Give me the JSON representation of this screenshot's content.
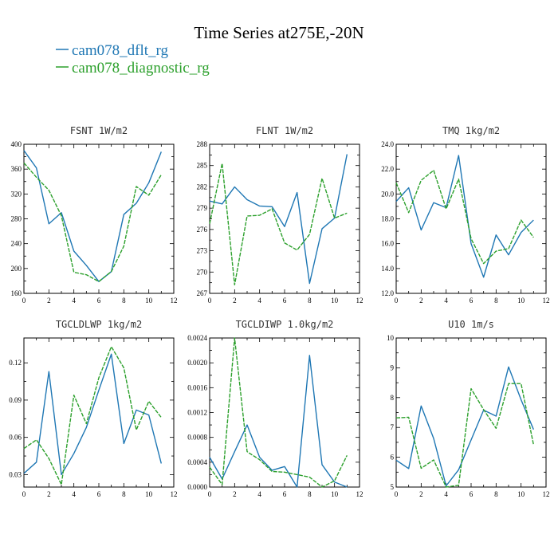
{
  "figure": {
    "title": "Time Series at275E,-20N",
    "legend": [
      {
        "label": "cam078_dflt_rg",
        "color": "#1f77b4"
      },
      {
        "label": "cam078_diagnostic_rg",
        "color": "#2ca02c"
      }
    ]
  },
  "chart_data": [
    {
      "type": "line",
      "title": "FSNT   1W/m2",
      "x": [
        0,
        1,
        2,
        3,
        4,
        5,
        6,
        7,
        8,
        9,
        10,
        11
      ],
      "xlim": [
        0,
        12
      ],
      "xticks": [
        "0",
        "2",
        "4",
        "6",
        "8",
        "10",
        "12"
      ],
      "ylim": [
        160,
        400
      ],
      "yticks": [
        "160",
        "200",
        "240",
        "280",
        "320",
        "360",
        "400"
      ],
      "series": [
        {
          "name": "cam078_dflt_rg",
          "color": "#1f77b4",
          "values": [
            390,
            362,
            272,
            290,
            228,
            205,
            179,
            195,
            287,
            305,
            338,
            388
          ]
        },
        {
          "name": "cam078_diagnostic_rg",
          "color": "#2ca02c",
          "dashed": true,
          "values": [
            370,
            347,
            326,
            285,
            194,
            190,
            179,
            195,
            236,
            332,
            318,
            351
          ]
        }
      ]
    },
    {
      "type": "line",
      "title": "FLNT   1W/m2",
      "x": [
        0,
        1,
        2,
        3,
        4,
        5,
        6,
        7,
        8,
        9,
        10,
        11
      ],
      "xlim": [
        0,
        12
      ],
      "xticks": [
        "0",
        "2",
        "4",
        "6",
        "8",
        "10",
        "12"
      ],
      "ylim": [
        267,
        288
      ],
      "yticks": [
        "267",
        "270",
        "273",
        "276",
        "279",
        "282",
        "285",
        "288"
      ],
      "series": [
        {
          "name": "cam078_dflt_rg",
          "color": "#1f77b4",
          "values": [
            280,
            279.6,
            282,
            280.2,
            279.3,
            279.2,
            276.4,
            281.2,
            268.4,
            276.1,
            277.6,
            286.6
          ]
        },
        {
          "name": "cam078_diagnostic_rg",
          "color": "#2ca02c",
          "dashed": true,
          "values": [
            276.8,
            285.3,
            268.2,
            277.9,
            278,
            278.9,
            274.1,
            273.1,
            275.3,
            283.2,
            277.6,
            278.3
          ]
        }
      ]
    },
    {
      "type": "line",
      "title": "TMQ   1kg/m2",
      "x": [
        0,
        1,
        2,
        3,
        4,
        5,
        6,
        7,
        8,
        9,
        10,
        11
      ],
      "xlim": [
        0,
        12
      ],
      "xticks": [
        "0",
        "2",
        "4",
        "6",
        "8",
        "10",
        "12"
      ],
      "ylim": [
        12,
        24
      ],
      "yticks": [
        "12.0",
        "14.0",
        "16.0",
        "18.0",
        "20.0",
        "22.0",
        "24.0"
      ],
      "series": [
        {
          "name": "cam078_dflt_rg",
          "color": "#1f77b4",
          "values": [
            19.4,
            20.5,
            17.1,
            19.3,
            18.9,
            23.1,
            16,
            13.3,
            16.7,
            15.1,
            16.9,
            17.9
          ]
        },
        {
          "name": "cam078_diagnostic_rg",
          "color": "#2ca02c",
          "dashed": true,
          "values": [
            20.9,
            18.5,
            21.1,
            21.9,
            18.8,
            21.2,
            16.4,
            14.4,
            15.4,
            15.6,
            17.9,
            16.5
          ]
        }
      ]
    },
    {
      "type": "line",
      "title": "TGCLDLWP   1kg/m2",
      "x": [
        0,
        1,
        2,
        3,
        4,
        5,
        6,
        7,
        8,
        9,
        10,
        11
      ],
      "xlim": [
        0,
        12
      ],
      "xticks": [
        "0",
        "2",
        "4",
        "6",
        "8",
        "10",
        "12"
      ],
      "ylim": [
        0.02,
        0.14
      ],
      "yticks": [
        "0.03",
        "0.06",
        "0.09",
        "0.12"
      ],
      "series": [
        {
          "name": "cam078_dflt_rg",
          "color": "#1f77b4",
          "values": [
            0.031,
            0.04,
            0.113,
            0.03,
            0.047,
            0.068,
            0.098,
            0.127,
            0.055,
            0.082,
            0.078,
            0.039
          ]
        },
        {
          "name": "cam078_diagnostic_rg",
          "color": "#2ca02c",
          "dashed": true,
          "values": [
            0.051,
            0.058,
            0.043,
            0.022,
            0.094,
            0.071,
            0.108,
            0.133,
            0.116,
            0.066,
            0.089,
            0.076
          ]
        }
      ]
    },
    {
      "type": "line",
      "title": "TGCLDIWP   1.0kg/m2",
      "x": [
        0,
        1,
        2,
        3,
        4,
        5,
        6,
        7,
        8,
        9,
        10,
        11
      ],
      "xlim": [
        0,
        12
      ],
      "xticks": [
        "0",
        "2",
        "4",
        "6",
        "8",
        "10",
        "12"
      ],
      "ylim": [
        0,
        0.0024
      ],
      "yticks": [
        "0.0000",
        "0.0004",
        "0.0008",
        "0.0012",
        "0.0016",
        "0.0020",
        "0.0024"
      ],
      "series": [
        {
          "name": "cam078_dflt_rg",
          "color": "#1f77b4",
          "values": [
            0.00048,
            0.00013,
            0.00057,
            0.001,
            0.00048,
            0.00027,
            0.00033,
            0.0,
            0.00212,
            0.00036,
            8e-05,
            0.0
          ]
        },
        {
          "name": "cam078_diagnostic_rg",
          "color": "#2ca02c",
          "dashed": true,
          "values": [
            0.00032,
            4e-05,
            0.0024,
            0.00057,
            0.00044,
            0.00025,
            0.00024,
            0.0002,
            0.00016,
            0.0,
            0.0001,
            0.00051
          ]
        }
      ]
    },
    {
      "type": "line",
      "title": "U10   1m/s",
      "x": [
        0,
        1,
        2,
        3,
        4,
        5,
        6,
        7,
        8,
        9,
        10,
        11
      ],
      "xlim": [
        0,
        12
      ],
      "xticks": [
        "0",
        "2",
        "4",
        "6",
        "8",
        "10",
        "12"
      ],
      "ylim": [
        5,
        10
      ],
      "yticks": [
        "5",
        "6",
        "7",
        "8",
        "9",
        "10"
      ],
      "series": [
        {
          "name": "cam078_dflt_rg",
          "color": "#1f77b4",
          "values": [
            5.9,
            5.62,
            7.72,
            6.63,
            5.04,
            5.58,
            6.58,
            7.58,
            7.38,
            9.03,
            7.93,
            6.93
          ]
        },
        {
          "name": "cam078_diagnostic_rg",
          "color": "#2ca02c",
          "dashed": true,
          "values": [
            7.32,
            7.34,
            5.63,
            5.91,
            5.0,
            5.06,
            8.3,
            7.6,
            6.97,
            8.47,
            8.47,
            6.42
          ]
        }
      ]
    }
  ]
}
